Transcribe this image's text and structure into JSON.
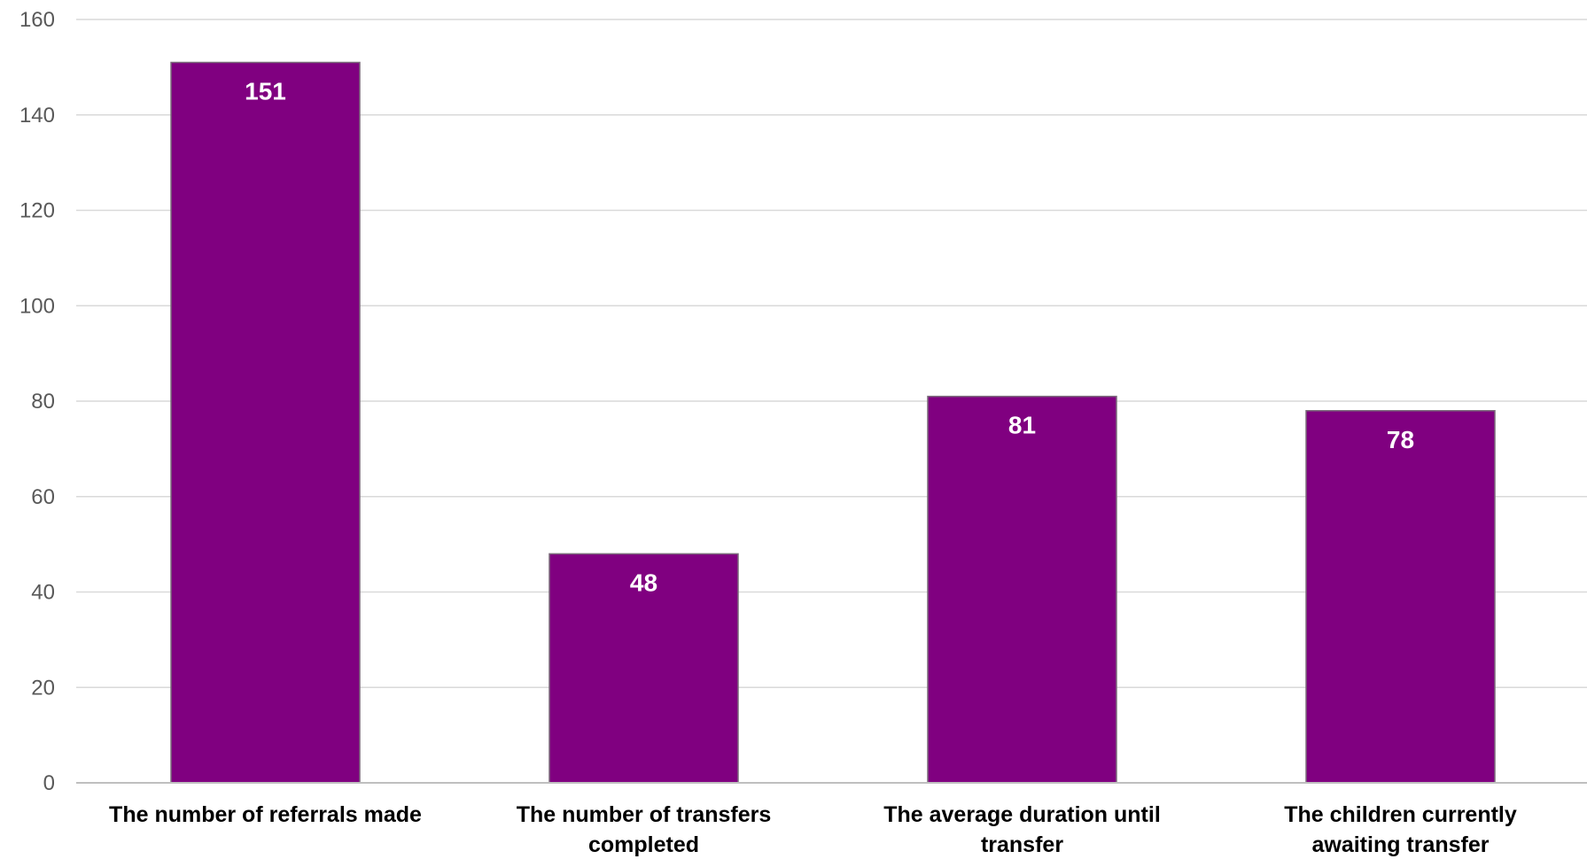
{
  "chart_data": {
    "type": "bar",
    "categories": [
      [
        "The number of referrals made"
      ],
      [
        "The number of transfers",
        "completed"
      ],
      [
        "The average duration until",
        "transfer"
      ],
      [
        "The children currently",
        "awaiting transfer"
      ]
    ],
    "values": [
      151,
      48,
      81,
      78
    ],
    "data_labels": [
      "151",
      "48",
      "81",
      "78"
    ],
    "title": "",
    "xlabel": "",
    "ylabel": "",
    "ylim": [
      0,
      160
    ],
    "yticks": [
      0,
      20,
      40,
      60,
      80,
      100,
      120,
      140,
      160
    ],
    "ytick_labels": [
      "0",
      "20",
      "40",
      "60",
      "80",
      "100",
      "120",
      "140",
      "160"
    ],
    "grid": true,
    "legend": "none",
    "colors": {
      "bar": "#800080",
      "bar_border": "#7a6a7a",
      "grid": "#d9d9d9",
      "axis": "#bfbfbf",
      "tick_text": "#595959",
      "category_text": "#000000",
      "data_label_text": "#ffffff"
    }
  }
}
